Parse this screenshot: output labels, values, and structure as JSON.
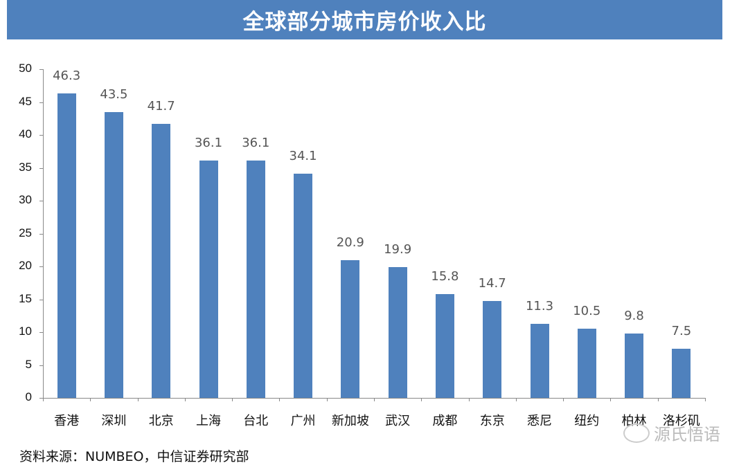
{
  "title": "全球部分城市房价收入比",
  "source": "资料来源：NUMBEO，中信证券研究部",
  "watermark": {
    "icon": "wechat-icon",
    "text": "源氏悟语"
  },
  "colors": {
    "banner": "#4f81bd",
    "bar": "#4f81bd"
  },
  "chart_data": {
    "type": "bar",
    "title": "全球部分城市房价收入比",
    "xlabel": "",
    "ylabel": "",
    "ylim": [
      0,
      50
    ],
    "yticks": [
      0,
      5,
      10,
      15,
      20,
      25,
      30,
      35,
      40,
      45,
      50
    ],
    "grid": false,
    "legend": null,
    "categories": [
      "香港",
      "深圳",
      "北京",
      "上海",
      "台北",
      "广州",
      "新加坡",
      "武汉",
      "成都",
      "东京",
      "悉尼",
      "纽约",
      "柏林",
      "洛杉矶"
    ],
    "values": [
      46.3,
      43.5,
      41.7,
      36.1,
      36.1,
      34.1,
      20.9,
      19.9,
      15.8,
      14.7,
      11.3,
      10.5,
      9.8,
      7.5
    ],
    "value_labels": [
      "46.3",
      "43.5",
      "41.7",
      "36.1",
      "36.1",
      "34.1",
      "20.9",
      "19.9",
      "15.8",
      "14.7",
      "11.3",
      "10.5",
      "9.8",
      "7.5"
    ]
  }
}
